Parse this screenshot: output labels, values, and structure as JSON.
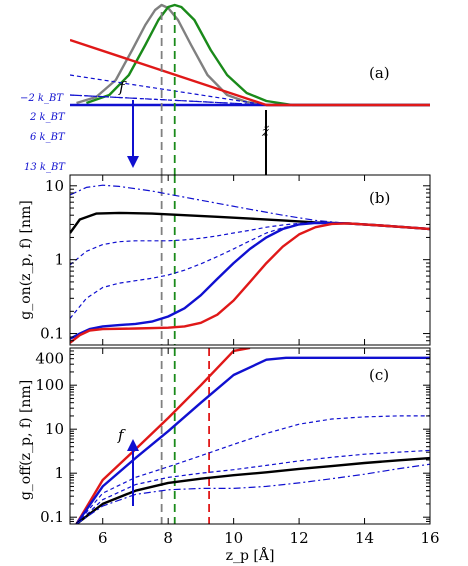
{
  "chart_data": [
    {
      "panel_label": "(a)",
      "type": "line",
      "xlim": [
        5,
        16
      ],
      "energy_labels": [
        "−2 k_BT",
        "2 k_BT",
        "6 k_BT",
        "13 k_BT"
      ],
      "force_label": "f",
      "marker_label": "z̃",
      "colors": {
        "grey": "#808080",
        "green": "#1a8a1a",
        "blue": "#1010d0",
        "red": "#e01818",
        "black": "#000000"
      },
      "series": [
        {
          "name": "",
          "color": "#808080",
          "style": "solid",
          "x": [
            5.2,
            5.8,
            6.4,
            6.9,
            7.3,
            7.6,
            7.8,
            8.0,
            8.3,
            8.7,
            9.2,
            9.8,
            10.4,
            11.0,
            16.0
          ],
          "y": [
            0.02,
            0.08,
            0.25,
            0.55,
            0.8,
            0.95,
            1.0,
            0.97,
            0.85,
            0.6,
            0.3,
            0.1,
            0.03,
            0.0,
            0.0
          ]
        },
        {
          "name": "",
          "color": "#1a8a1a",
          "style": "solid",
          "x": [
            5.5,
            6.2,
            6.8,
            7.3,
            7.7,
            8.0,
            8.2,
            8.4,
            8.8,
            9.3,
            9.8,
            10.4,
            11.0,
            11.8,
            16.0
          ],
          "y": [
            0.02,
            0.1,
            0.3,
            0.6,
            0.85,
            0.98,
            1.0,
            0.98,
            0.85,
            0.55,
            0.3,
            0.12,
            0.04,
            0.0,
            0.0
          ]
        },
        {
          "name": "",
          "color": "#1010d0",
          "style": "solid",
          "x": [
            5,
            16
          ],
          "y": [
            0,
            0
          ]
        },
        {
          "name": "",
          "color": "#1010d0",
          "style": "dashdot",
          "x": [
            5,
            11,
            16
          ],
          "y": [
            0.1,
            0,
            0
          ]
        },
        {
          "name": "",
          "color": "#1010d0",
          "style": "dashed",
          "x": [
            5,
            11,
            16
          ],
          "y": [
            -0.1,
            0,
            0
          ]
        },
        {
          "name": "",
          "color": "#1010d0",
          "style": "dashed",
          "x": [
            5,
            11,
            16
          ],
          "y": [
            -0.3,
            0,
            0
          ]
        },
        {
          "name": "",
          "color": "#e01818",
          "style": "solid",
          "x": [
            5,
            11,
            16
          ],
          "y": [
            -0.65,
            0,
            0
          ]
        }
      ],
      "vlines": [
        {
          "x": 7.8,
          "color": "#808080"
        },
        {
          "x": 8.2,
          "color": "#1a8a1a"
        }
      ]
    },
    {
      "panel_label": "(b)",
      "type": "line",
      "ylabel": "g_on(z_p, f) [nm]",
      "yscale": "log",
      "xlim": [
        5,
        16
      ],
      "ylim": [
        0.07,
        14
      ],
      "xticks": [
        6,
        8,
        10,
        12,
        14,
        16
      ],
      "yticks": [
        0.1,
        1,
        10
      ],
      "yticklabels": [
        "0.1",
        "1",
        "10"
      ],
      "series": [
        {
          "name": "",
          "color": "#000000",
          "style": "solid",
          "x": [
            5.0,
            5.3,
            5.8,
            6.5,
            7.5,
            8.5,
            9.5,
            10.5,
            11.5,
            12.5,
            13.5,
            14.5,
            15.5,
            16.0
          ],
          "y": [
            2.3,
            3.5,
            4.2,
            4.3,
            4.2,
            4.0,
            3.8,
            3.6,
            3.4,
            3.2,
            3.1,
            2.9,
            2.7,
            2.6
          ]
        },
        {
          "name": "",
          "color": "#1010d0",
          "style": "dashdot",
          "x": [
            5.0,
            5.5,
            6.0,
            6.5,
            7.5,
            8.5,
            9.5,
            10.5,
            11.5,
            12.5,
            13.5,
            14.5,
            15.5,
            16.0
          ],
          "y": [
            7.5,
            9.5,
            10.2,
            9.8,
            8.5,
            7.0,
            5.8,
            4.8,
            4.0,
            3.4,
            3.1,
            2.9,
            2.7,
            2.6
          ]
        },
        {
          "name": "",
          "color": "#1010d0",
          "style": "dashed",
          "x": [
            5.0,
            5.5,
            6.0,
            6.5,
            7.0,
            7.5,
            8.0,
            8.5,
            9.0,
            9.5,
            10.0,
            10.5,
            11.0,
            11.5,
            12.0,
            12.5,
            13.5,
            14.5,
            15.5,
            16.0
          ],
          "y": [
            0.85,
            1.3,
            1.6,
            1.75,
            1.8,
            1.8,
            1.8,
            1.85,
            1.95,
            2.1,
            2.3,
            2.5,
            2.75,
            2.95,
            3.1,
            3.2,
            3.1,
            2.9,
            2.7,
            2.6
          ]
        },
        {
          "name": "",
          "color": "#1010d0",
          "style": "dashed",
          "x": [
            5.0,
            5.5,
            6.0,
            6.5,
            7.0,
            7.5,
            8.0,
            8.5,
            9.0,
            9.5,
            10.0,
            10.5,
            11.0,
            11.5,
            12.0,
            12.5,
            13.5,
            14.5,
            15.5,
            16.0
          ],
          "y": [
            0.16,
            0.3,
            0.42,
            0.48,
            0.52,
            0.56,
            0.62,
            0.72,
            0.88,
            1.1,
            1.4,
            1.8,
            2.3,
            2.7,
            3.0,
            3.15,
            3.1,
            2.9,
            2.7,
            2.6
          ]
        },
        {
          "name": "",
          "color": "#1010d0",
          "style": "solid",
          "x": [
            5.0,
            5.3,
            5.6,
            6.0,
            6.5,
            7.0,
            7.5,
            8.0,
            8.5,
            9.0,
            9.5,
            10.0,
            10.5,
            11.0,
            11.5,
            12.0,
            12.5,
            13.5,
            14.5,
            15.5,
            16.0
          ],
          "y": [
            0.085,
            0.1,
            0.115,
            0.125,
            0.13,
            0.135,
            0.145,
            0.17,
            0.22,
            0.33,
            0.55,
            0.9,
            1.4,
            2.0,
            2.6,
            3.0,
            3.15,
            3.1,
            2.9,
            2.7,
            2.6
          ]
        },
        {
          "name": "",
          "color": "#e01818",
          "style": "solid",
          "x": [
            5.0,
            5.3,
            5.6,
            6.0,
            7.0,
            8.0,
            8.5,
            9.0,
            9.5,
            10.0,
            10.5,
            11.0,
            11.5,
            12.0,
            12.5,
            13.0,
            13.5,
            14.5,
            15.5,
            16.0
          ],
          "y": [
            0.075,
            0.095,
            0.11,
            0.115,
            0.117,
            0.12,
            0.125,
            0.14,
            0.18,
            0.28,
            0.5,
            0.9,
            1.5,
            2.2,
            2.75,
            3.05,
            3.1,
            2.9,
            2.7,
            2.6
          ]
        }
      ],
      "vlines": [
        {
          "x": 7.8,
          "color": "#808080"
        },
        {
          "x": 8.2,
          "color": "#1a8a1a"
        }
      ]
    },
    {
      "panel_label": "(c)",
      "type": "line",
      "xlabel": "z_p [Å]",
      "ylabel": "g_off(z_p, f) [nm]",
      "yscale": "log",
      "xlim": [
        5,
        16
      ],
      "ylim": [
        0.07,
        700
      ],
      "xticks": [
        6,
        8,
        10,
        12,
        14,
        16
      ],
      "xticklabels": [
        "6",
        "8",
        "10",
        "12",
        "14",
        "16"
      ],
      "yticks": [
        0.1,
        1,
        10,
        100
      ],
      "yticklabels": [
        "0.1",
        "1",
        "10",
        "100"
      ],
      "extra_ytick": {
        "value": 400,
        "label": "400"
      },
      "force_label": "f",
      "series": [
        {
          "name": "",
          "color": "#e01818",
          "style": "solid",
          "x": [
            5.2,
            6.0,
            7.0,
            8.0,
            9.0,
            10.0,
            10.5
          ],
          "y": [
            0.07,
            0.7,
            3.5,
            18,
            100,
            600,
            700
          ]
        },
        {
          "name": "",
          "color": "#1010d0",
          "style": "solid",
          "x": [
            5.2,
            6.0,
            7.0,
            8.0,
            9.0,
            10.0,
            11.0,
            11.6,
            12.0,
            13.0,
            16.0
          ],
          "y": [
            0.07,
            0.5,
            2.2,
            9,
            40,
            170,
            380,
            420,
            420,
            420,
            420
          ]
        },
        {
          "name": "",
          "color": "#1010d0",
          "style": "dashed",
          "x": [
            5.2,
            6.0,
            7.0,
            8.0,
            9.0,
            10.0,
            11.0,
            12.0,
            13.0,
            14.0,
            15.0,
            16.0
          ],
          "y": [
            0.07,
            0.35,
            0.8,
            1.4,
            2.5,
            4.5,
            8,
            13,
            17,
            19,
            20,
            20
          ]
        },
        {
          "name": "",
          "color": "#1010d0",
          "style": "dashed",
          "x": [
            5.2,
            6.0,
            7.0,
            8.0,
            9.0,
            10.0,
            11.0,
            12.0,
            13.0,
            14.0,
            15.0,
            16.0
          ],
          "y": [
            0.07,
            0.25,
            0.55,
            0.8,
            1.0,
            1.2,
            1.5,
            1.9,
            2.3,
            2.7,
            3.0,
            3.3
          ]
        },
        {
          "name": "",
          "color": "#000000",
          "style": "solid",
          "x": [
            5.2,
            6.0,
            7.0,
            8.0,
            9.0,
            10.0,
            11.0,
            12.0,
            13.0,
            14.0,
            15.0,
            16.0
          ],
          "y": [
            0.07,
            0.2,
            0.4,
            0.6,
            0.75,
            0.9,
            1.05,
            1.25,
            1.45,
            1.7,
            1.95,
            2.2
          ]
        },
        {
          "name": "",
          "color": "#1010d0",
          "style": "dashdot",
          "x": [
            5.2,
            6.0,
            7.0,
            8.0,
            9.0,
            10.0,
            11.0,
            12.0,
            13.0,
            14.0,
            15.0,
            16.0
          ],
          "y": [
            0.07,
            0.18,
            0.33,
            0.42,
            0.45,
            0.45,
            0.5,
            0.6,
            0.75,
            0.95,
            1.25,
            1.6
          ]
        }
      ],
      "vlines": [
        {
          "x": 7.8,
          "color": "#808080"
        },
        {
          "x": 8.2,
          "color": "#1a8a1a"
        },
        {
          "x": 9.25,
          "color": "#e01818"
        }
      ]
    }
  ]
}
